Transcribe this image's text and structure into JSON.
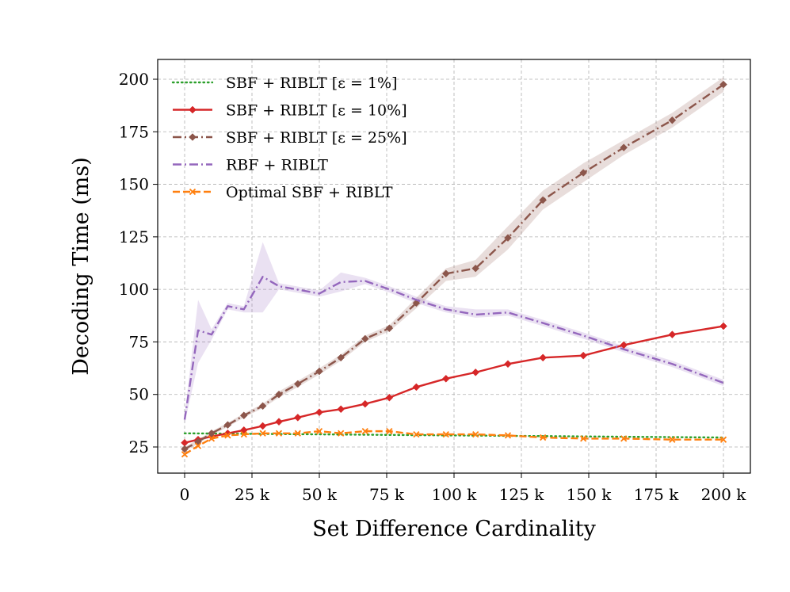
{
  "chart_data": {
    "type": "line",
    "title": "",
    "xlabel": "Set Difference Cardinality",
    "ylabel": "Decoding Time (ms)",
    "xlim": [
      -10000,
      210000
    ],
    "ylim": [
      12,
      210
    ],
    "xticks": [
      0,
      25000,
      50000,
      75000,
      100000,
      125000,
      150000,
      175000,
      200000
    ],
    "xtick_labels": [
      "0",
      "25 k",
      "50 k",
      "75 k",
      "100 k",
      "125 k",
      "150 k",
      "175 k",
      "200 k"
    ],
    "yticks": [
      25,
      50,
      75,
      100,
      125,
      150,
      175,
      200
    ],
    "ytick_labels": [
      "25",
      "50",
      "75",
      "100",
      "125",
      "150",
      "175",
      "200"
    ],
    "grid": true,
    "legend": "top-left",
    "series": [
      {
        "name": "SBF + RIBLT [ε = 1%]",
        "color": "#2ca02c",
        "line": "dotted",
        "marker": "none",
        "x": [
          0,
          200000
        ],
        "y": [
          31.5,
          29.5
        ]
      },
      {
        "name": "SBF + RIBLT [ε = 10%]",
        "color": "#d62728",
        "line": "solid",
        "marker": "diamond",
        "x": [
          0,
          5000,
          10000,
          16000,
          22000,
          29000,
          35000,
          42000,
          50000,
          58000,
          67000,
          76000,
          86000,
          97000,
          108000,
          120000,
          133000,
          148000,
          163000,
          181000,
          200000
        ],
        "y": [
          27,
          28.5,
          30,
          31.5,
          33,
          35,
          37,
          39,
          41.5,
          43,
          45.5,
          48.5,
          53.5,
          57.5,
          60.5,
          64.5,
          67.5,
          68.5,
          73.5,
          78.5,
          82.5
        ]
      },
      {
        "name": "SBF + RIBLT [ε = 25%]",
        "color": "#8c564b",
        "line": "dashdot",
        "marker": "diamond",
        "x": [
          0,
          5000,
          10000,
          16000,
          22000,
          29000,
          35000,
          42000,
          50000,
          58000,
          67000,
          76000,
          86000,
          97000,
          108000,
          120000,
          133000,
          148000,
          163000,
          181000,
          200000
        ],
        "y": [
          24,
          27.5,
          31.5,
          35.5,
          40,
          44.5,
          50,
          55,
          61,
          67.5,
          76.5,
          81.5,
          93.5,
          107.5,
          110,
          124.5,
          142.5,
          155.5,
          167.5,
          180.5,
          197.5
        ],
        "band_lower": [
          23,
          26.5,
          30.5,
          34.5,
          39,
          43.5,
          48.5,
          53.5,
          59.5,
          66,
          75,
          80,
          91,
          104,
          106,
          119,
          138,
          151,
          164,
          177,
          194
        ],
        "band_upper": [
          25,
          28.5,
          32.5,
          36.5,
          41,
          45.5,
          51.5,
          56.5,
          62.5,
          69,
          78,
          83,
          96,
          110,
          114,
          130,
          147,
          160,
          171,
          184,
          201
        ]
      },
      {
        "name": "RBF + RIBLT",
        "color": "#9467bd",
        "line": "dashdot",
        "marker": "none",
        "x": [
          0,
          5000,
          10000,
          16000,
          22000,
          29000,
          35000,
          50000,
          58000,
          67000,
          76000,
          86000,
          97000,
          108000,
          120000,
          133000,
          148000,
          163000,
          181000,
          200000
        ],
        "y": [
          38,
          80.5,
          78.5,
          92,
          90.5,
          106,
          101.5,
          98,
          103.5,
          104,
          100,
          95,
          90.5,
          88,
          89,
          84,
          78,
          71.5,
          64.5,
          55.5
        ],
        "band_lower": [
          36,
          65,
          76,
          90.5,
          89,
          89,
          100,
          96.5,
          99,
          102.5,
          98.5,
          93.5,
          89,
          86.5,
          87.5,
          82.5,
          76.5,
          70,
          63,
          54
        ],
        "band_upper": [
          40,
          95,
          81,
          93.5,
          92,
          122.5,
          103,
          99.5,
          108,
          105.5,
          101.5,
          96.5,
          92,
          90.5,
          90.5,
          85.5,
          79.5,
          73,
          66,
          57
        ]
      },
      {
        "name": "Optimal SBF + RIBLT",
        "color": "#ff7f0e",
        "line": "dashed",
        "marker": "x",
        "x": [
          0,
          5000,
          10000,
          16000,
          22000,
          29000,
          35000,
          42000,
          50000,
          58000,
          67000,
          76000,
          86000,
          97000,
          108000,
          120000,
          133000,
          148000,
          163000,
          181000,
          200000
        ],
        "y": [
          21.5,
          25.5,
          29,
          30.5,
          31,
          31.5,
          31.5,
          31.5,
          32.5,
          31.5,
          32.5,
          32.5,
          31,
          31,
          31,
          30.5,
          29.5,
          29,
          29,
          28.5,
          28.5
        ]
      }
    ]
  }
}
